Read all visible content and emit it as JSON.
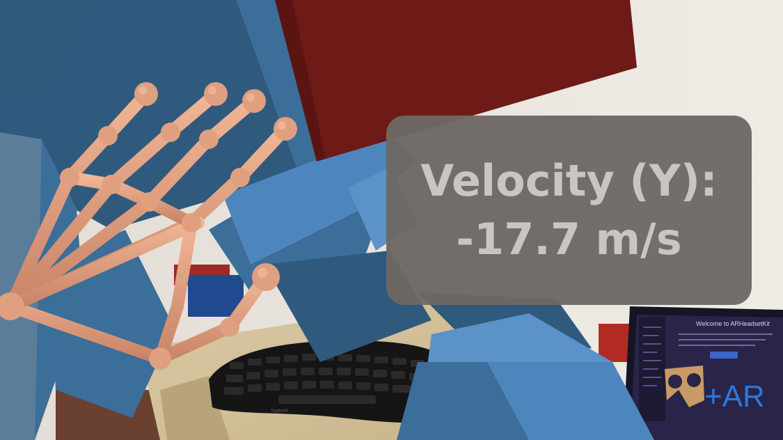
{
  "readout": {
    "label": "Velocity (Y):",
    "value": "-17.7 m/s"
  },
  "monitor": {
    "welcome_text": "Welcome to ARHeadsetKit",
    "ar_logo_text": "+AR"
  },
  "keyboard": {
    "brand": "logitech"
  },
  "colors": {
    "wall": "#e9e5de",
    "cube_dark": "#2f5a7e",
    "cube_mid": "#3b6e99",
    "cube_light": "#5b93c8",
    "red_block": "#6e1a16",
    "hand": "#e1a080",
    "panel": "#6c6864",
    "panel_text": "#c9c5c1"
  },
  "icons": [
    "cardboard-headset-icon"
  ]
}
